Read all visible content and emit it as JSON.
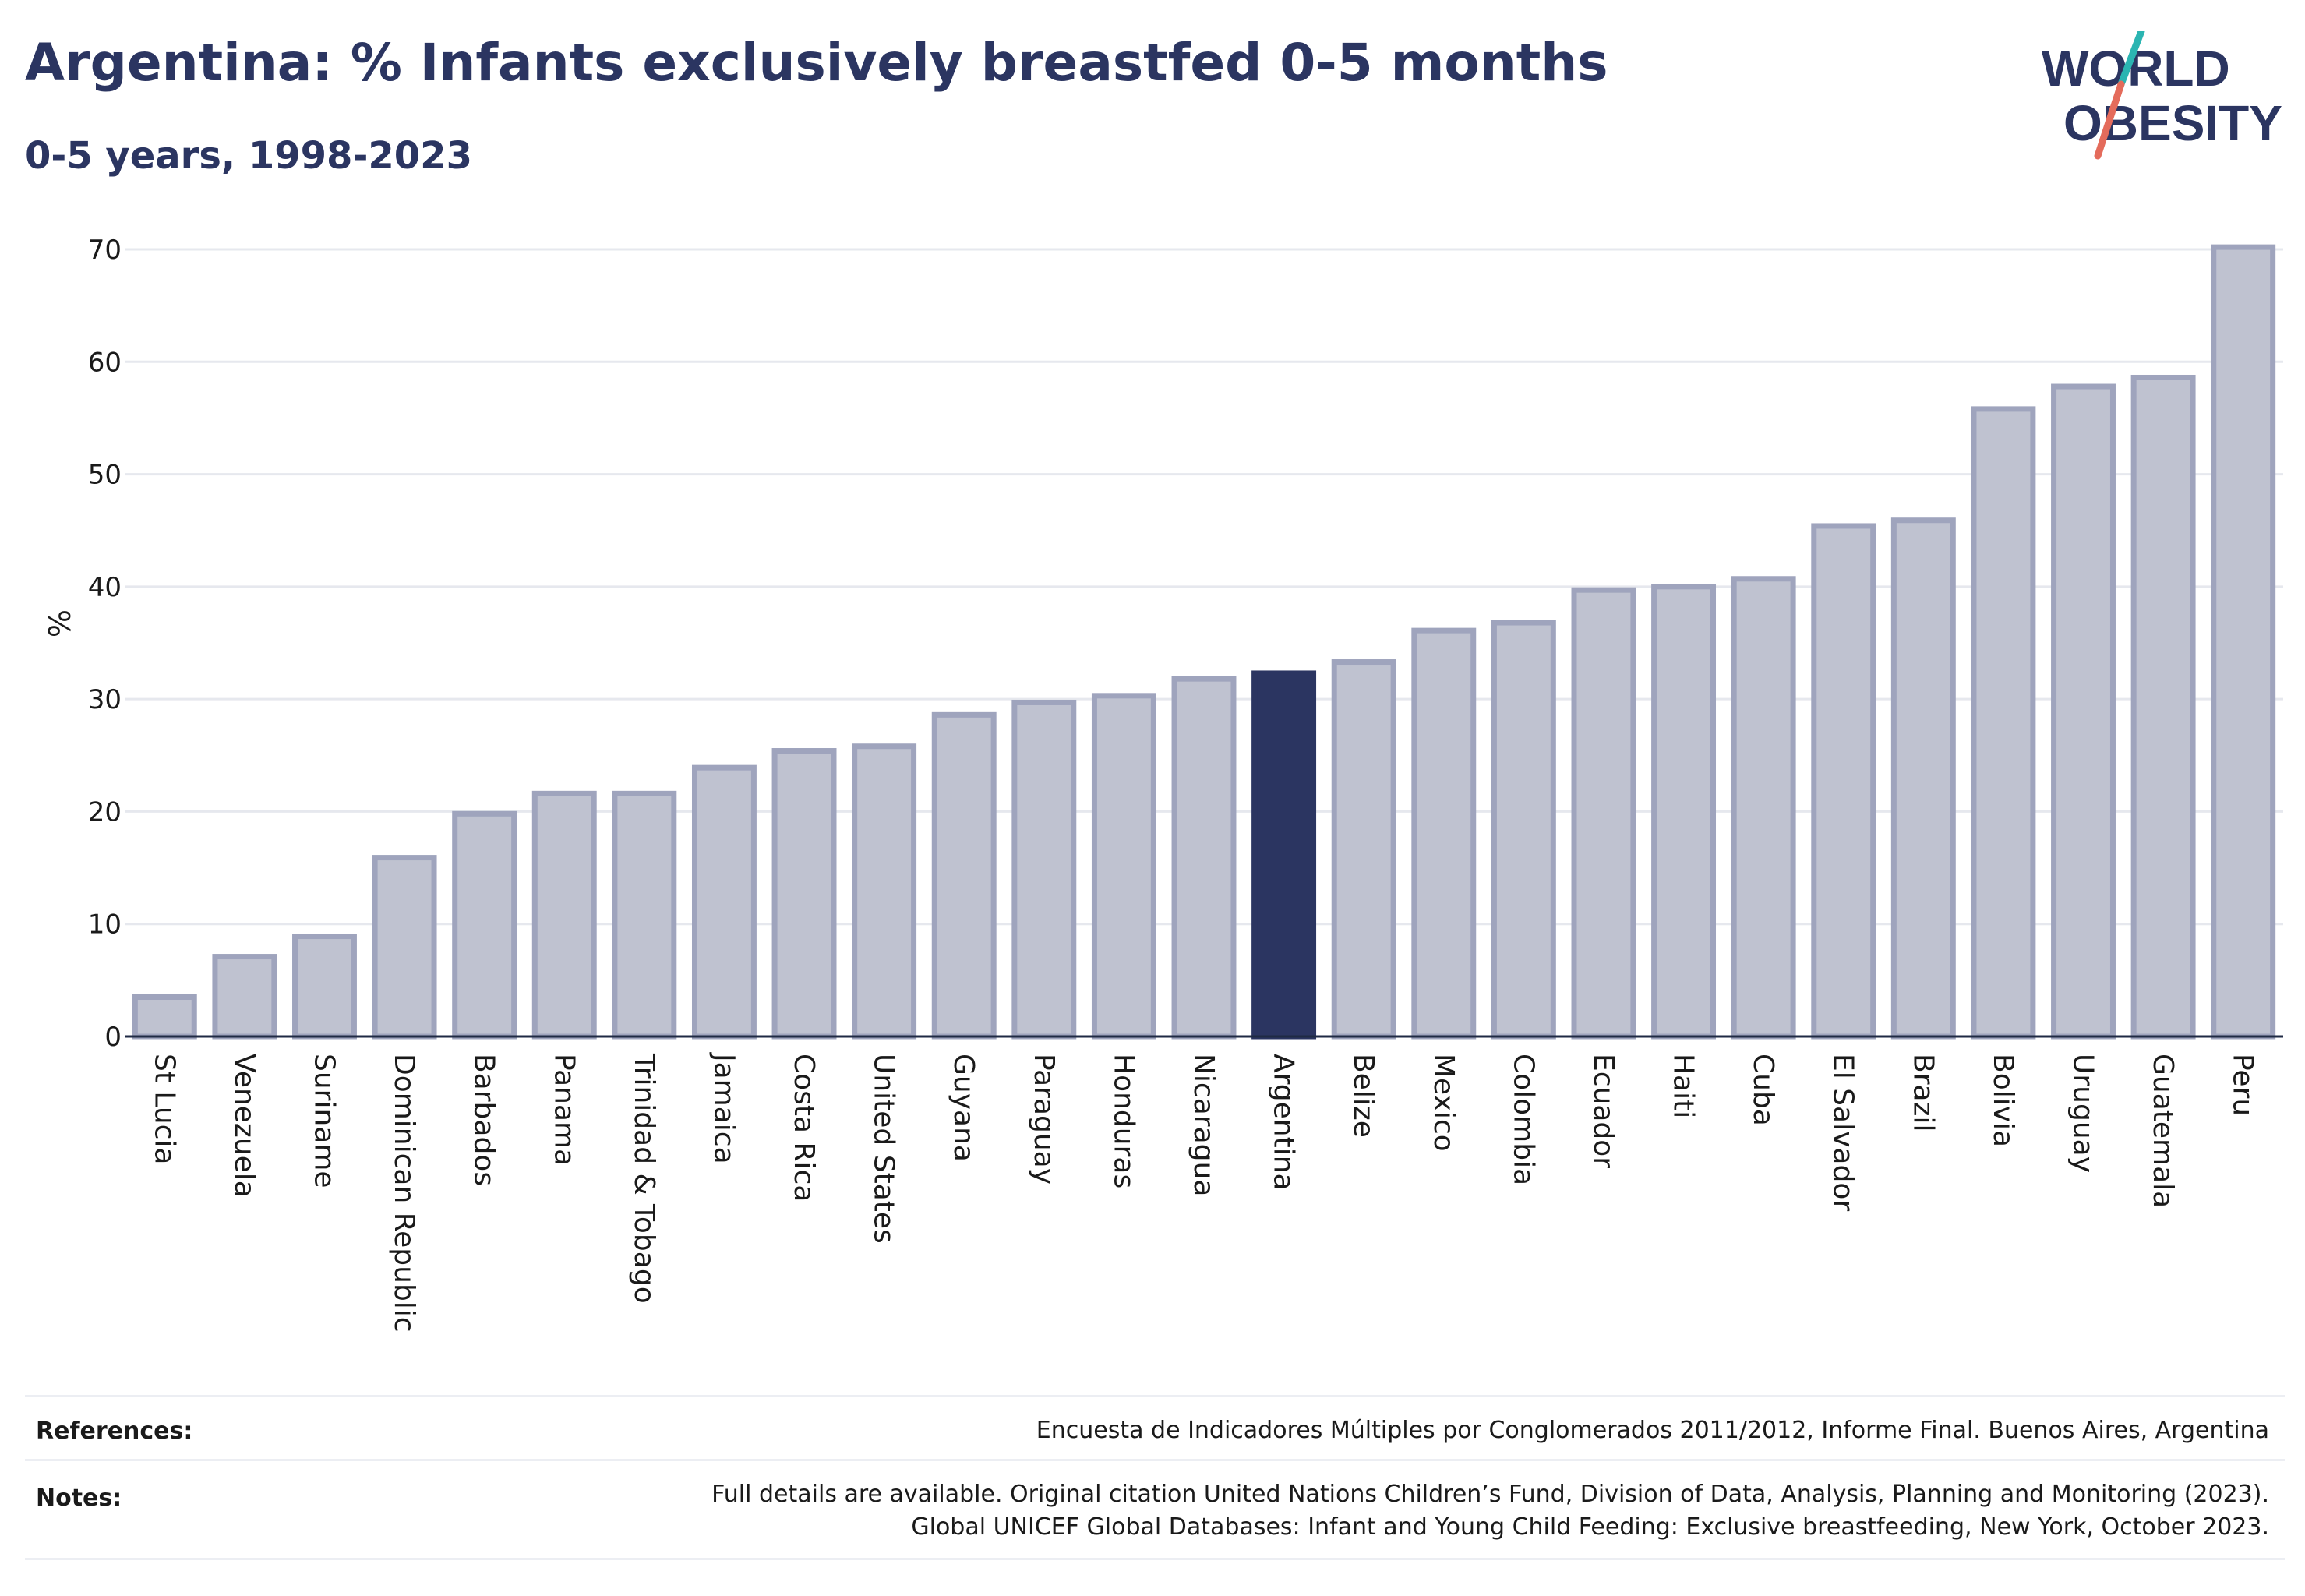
{
  "header": {
    "title": "Argentina: % Infants exclusively breastfed 0-5 months",
    "subtitle": "0-5 years, 1998-2023"
  },
  "logo": {
    "line1": "WORLD",
    "line2": "OBESITY",
    "accent_teal": "#2bb5b2",
    "accent_coral": "#e46b5b",
    "text_color": "#2b3561"
  },
  "colors": {
    "bar": "#bfc2d0",
    "bar_edge": "#9fa4bd",
    "highlight": "#2b3561",
    "grid": "#e6e8ee",
    "axis": "#1f2a44"
  },
  "chart_data": {
    "type": "bar",
    "title": "Argentina: % Infants exclusively breastfed 0-5 months",
    "subtitle": "0-5 years, 1998-2023",
    "xlabel": "",
    "ylabel": "%",
    "ylim": [
      0,
      70
    ],
    "yticks": [
      0,
      10,
      20,
      30,
      40,
      50,
      60,
      70
    ],
    "grid": true,
    "highlight": "Argentina",
    "categories": [
      "St Lucia",
      "Venezuela",
      "Suriname",
      "Dominican Republic",
      "Barbados",
      "Panama",
      "Trinidad & Tobago",
      "Jamaica",
      "Costa Rica",
      "United States",
      "Guyana",
      "Paraguay",
      "Honduras",
      "Nicaragua",
      "Argentina",
      "Belize",
      "Mexico",
      "Colombia",
      "Ecuador",
      "Haiti",
      "Cuba",
      "El Salvador",
      "Brazil",
      "Bolivia",
      "Uruguay",
      "Guatemala",
      "Peru"
    ],
    "values": [
      3.5,
      7.1,
      8.9,
      15.9,
      19.8,
      21.6,
      21.6,
      23.9,
      25.4,
      25.8,
      28.6,
      29.7,
      30.3,
      31.8,
      32.3,
      33.3,
      36.1,
      36.8,
      39.7,
      40.0,
      40.7,
      45.4,
      45.9,
      55.8,
      57.8,
      58.6,
      70.2
    ]
  },
  "footer": {
    "references_label": "References:",
    "references_text": "Encuesta de Indicadores Múltiples por Conglomerados 2011/2012, Informe Final. Buenos Aires, Argentina",
    "notes_label": "Notes:",
    "notes_line1": "Full details are available. Original citation United Nations Children’s Fund, Division of Data, Analysis, Planning and Monitoring (2023).",
    "notes_line2": "Global UNICEF Global Databases: Infant and Young Child Feeding: Exclusive breastfeeding, New York, October 2023."
  }
}
